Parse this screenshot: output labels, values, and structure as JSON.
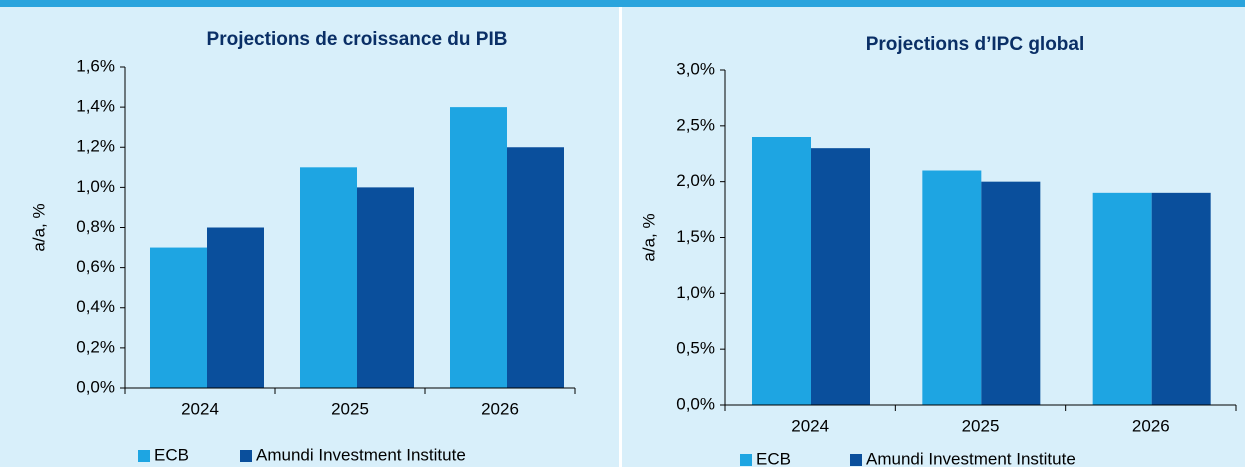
{
  "chart_data": [
    {
      "type": "bar",
      "title": "Projections de croissance du PIB",
      "y_label": "a/a, %",
      "categories": [
        "2024",
        "2025",
        "2026"
      ],
      "series": [
        {
          "name": "ECB",
          "color": "#1ea5e2",
          "values": [
            0.7,
            1.1,
            1.4
          ]
        },
        {
          "name": "Amundi Investment Institute",
          "color": "#0a4f9c",
          "values": [
            0.8,
            1.0,
            1.2
          ]
        }
      ],
      "ylim": [
        0,
        1.6
      ],
      "yticks": [
        {
          "value": 0,
          "label": "0,0%"
        },
        {
          "value": 0.2,
          "label": "0,2%"
        },
        {
          "value": 0.4,
          "label": "0,4%"
        },
        {
          "value": 0.6,
          "label": "0,6%"
        },
        {
          "value": 0.8,
          "label": "0,8%"
        },
        {
          "value": 1.0,
          "label": "1,0%"
        },
        {
          "value": 1.2,
          "label": "1,2%"
        },
        {
          "value": 1.4,
          "label": "1,4%"
        },
        {
          "value": 1.6,
          "label": "1,6%"
        }
      ],
      "legend": "bottom"
    },
    {
      "type": "bar",
      "title": "Projections d’IPC global",
      "y_label": "a/a, %",
      "categories": [
        "2024",
        "2025",
        "2026"
      ],
      "series": [
        {
          "name": "ECB",
          "color": "#1ea5e2",
          "values": [
            2.4,
            2.1,
            1.9
          ]
        },
        {
          "name": "Amundi Investment Institute",
          "color": "#0a4f9c",
          "values": [
            2.3,
            2.0,
            1.9
          ]
        }
      ],
      "ylim": [
        0,
        3.0
      ],
      "yticks": [
        {
          "value": 0,
          "label": "0,0%"
        },
        {
          "value": 0.5,
          "label": "0,5%"
        },
        {
          "value": 1.0,
          "label": "1,0%"
        },
        {
          "value": 1.5,
          "label": "1,5%"
        },
        {
          "value": 2.0,
          "label": "2,0%"
        },
        {
          "value": 2.5,
          "label": "2,5%"
        },
        {
          "value": 3.0,
          "label": "3,0%"
        }
      ],
      "legend": "bottom"
    }
  ]
}
